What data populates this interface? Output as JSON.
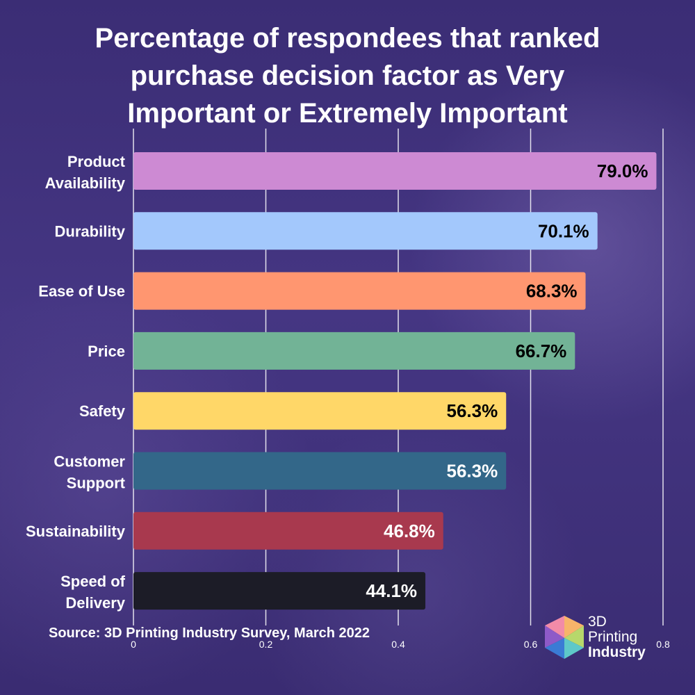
{
  "chart_data": {
    "type": "bar",
    "orientation": "horizontal",
    "title": "Percentage of respondees that ranked purchase decision factor as Very Important or Extremely Important",
    "title_lines": [
      "Percentage of respondees that ranked",
      "purchase decision factor as Very",
      "Important or Extremely Important"
    ],
    "categories": [
      [
        "Product",
        "Availability"
      ],
      [
        "Durability"
      ],
      [
        "Ease of Use"
      ],
      [
        "Price"
      ],
      [
        "Safety"
      ],
      [
        "Customer",
        "Support"
      ],
      [
        "Sustainability"
      ],
      [
        "Speed of",
        "Delivery"
      ]
    ],
    "values": [
      0.79,
      0.701,
      0.683,
      0.667,
      0.563,
      0.563,
      0.468,
      0.441
    ],
    "value_labels": [
      "79.0%",
      "70.1%",
      "68.3%",
      "66.7%",
      "56.3%",
      "56.3%",
      "46.8%",
      "44.1%"
    ],
    "bar_colors": [
      "#cd8ad3",
      "#a3c8fc",
      "#ff9670",
      "#72b396",
      "#ffd768",
      "#336789",
      "#a8394e",
      "#1c1c27"
    ],
    "label_colors": [
      "#000000",
      "#000000",
      "#000000",
      "#000000",
      "#000000",
      "#ffffff",
      "#ffffff",
      "#ffffff"
    ],
    "xlim": [
      0,
      0.8
    ],
    "x_ticks": [
      0,
      0.2,
      0.4,
      0.6,
      0.8
    ],
    "x_tick_labels": [
      "0",
      "0.2",
      "0.4",
      "0.6",
      "0.8"
    ],
    "grid": true,
    "xlabel": "",
    "ylabel": ""
  },
  "source": "Source: 3D Printing Industry Survey, March 2022",
  "brand": {
    "line1": "3D",
    "line2": "Printing",
    "line3": "Industry",
    "colors": [
      "#f28ba8",
      "#f7b46a",
      "#b7d86b",
      "#5ec8c9",
      "#3a7bd5",
      "#8e5ac8"
    ]
  }
}
